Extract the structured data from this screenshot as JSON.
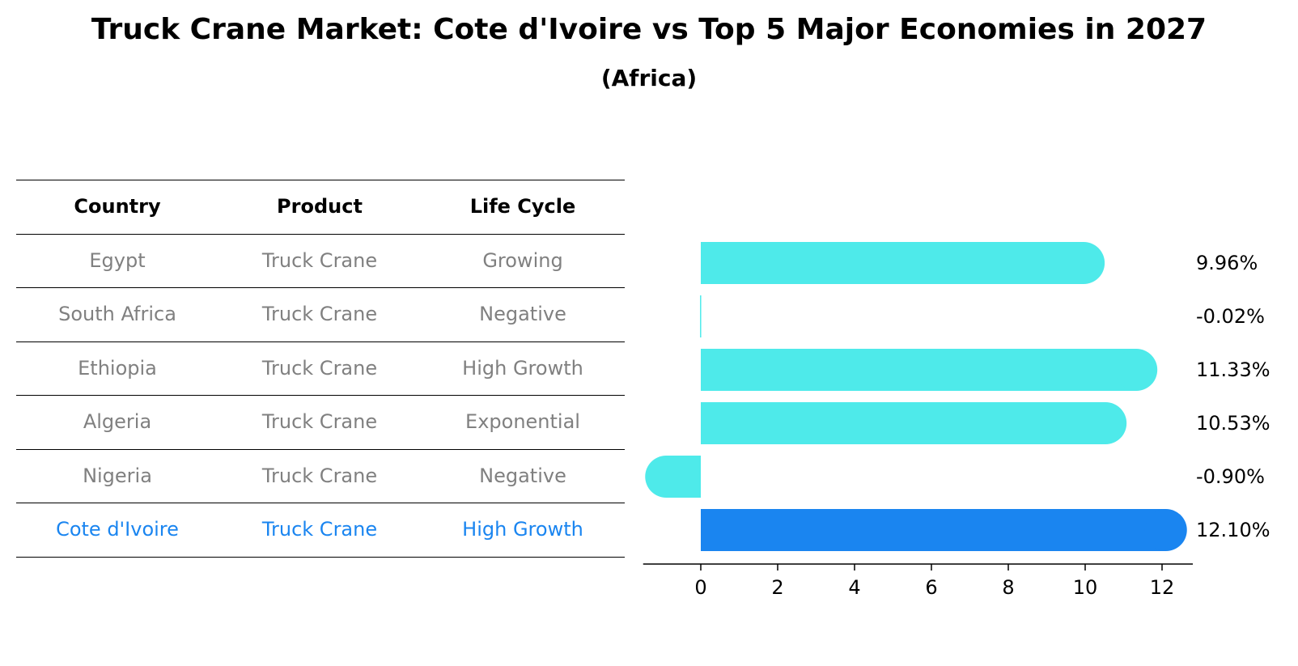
{
  "title": "Truck Crane Market: Cote d'Ivoire vs Top 5 Major Economies in 2027",
  "subtitle": "(Africa)",
  "table": {
    "headers": [
      "Country",
      "Product",
      "Life Cycle"
    ],
    "rows": [
      [
        "Egypt",
        "Truck Crane",
        "Growing"
      ],
      [
        "South Africa",
        "Truck Crane",
        "Negative"
      ],
      [
        "Ethiopia",
        "Truck Crane",
        "High Growth"
      ],
      [
        "Algeria",
        "Truck Crane",
        "Exponential"
      ],
      [
        "Nigeria",
        "Truck Crane",
        "Negative"
      ],
      [
        "Cote d'Ivoire",
        "Truck Crane",
        "High Growth"
      ]
    ],
    "highlight_row": 5
  },
  "colors": {
    "bar": "#4eeaea",
    "highlight": "#1a85f0",
    "muted_text": "#808080"
  },
  "chart_data": {
    "type": "bar",
    "orientation": "horizontal",
    "categories": [
      "Egypt",
      "South Africa",
      "Ethiopia",
      "Algeria",
      "Nigeria",
      "Cote d'Ivoire"
    ],
    "values": [
      9.96,
      -0.02,
      11.33,
      10.53,
      -0.9,
      12.1
    ],
    "labels": [
      "9.96%",
      "-0.02%",
      "11.33%",
      "10.53%",
      "-0.90%",
      "12.10%"
    ],
    "highlight_index": 5,
    "xlim": [
      -1.5,
      12.8
    ],
    "xticks": [
      0,
      2,
      4,
      6,
      8,
      10,
      12
    ],
    "xtick_labels": [
      "0",
      "2",
      "4",
      "6",
      "8",
      "10",
      "12"
    ]
  }
}
